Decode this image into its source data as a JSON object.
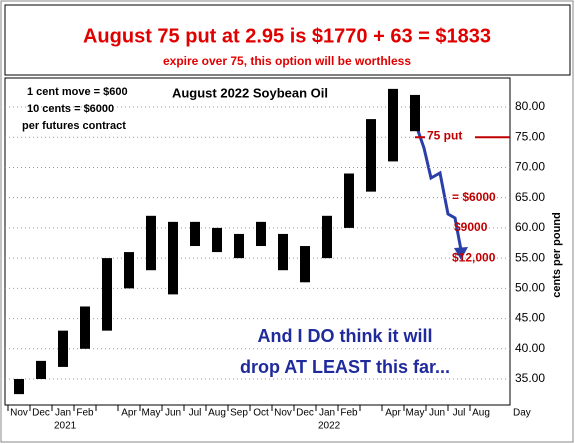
{
  "chart_data": {
    "type": "range",
    "title": "August 75 put at 2.95 is $1770 + 63 = $1833",
    "subtitle": "expire over 75, this option will be worthless",
    "chart_title": "August 2022 Soybean Oil",
    "notes": [
      "1 cent move = $600",
      "10 cents = $6000",
      "per futures contract"
    ],
    "callout": [
      "And I DO think it will",
      "drop AT LEAST this far..."
    ],
    "x_label": "Day",
    "y_label": "cents per pound",
    "categories": [
      "Nov",
      "Dec",
      "Jan",
      "Feb",
      null,
      "Apr",
      "May",
      "Jun",
      "Jul",
      "Aug",
      "Sep",
      "Oct",
      "Nov",
      "Dec",
      "Jan",
      "Feb",
      null,
      "Apr",
      "May",
      "Jun",
      "Jul",
      "Aug"
    ],
    "year_labels": [
      "2021",
      "2022"
    ],
    "series": [
      {
        "name": "high",
        "color": "#000000",
        "values": [
          35,
          38,
          43,
          47,
          55,
          56,
          62,
          61,
          61,
          60,
          59,
          61,
          59,
          57,
          62,
          69,
          78,
          83,
          82,
          null,
          null,
          null
        ]
      },
      {
        "name": "low",
        "color": "#000000",
        "values": [
          32.5,
          35,
          37,
          40,
          43,
          50,
          53,
          49,
          57,
          56,
          55,
          57,
          53,
          51,
          55,
          60,
          66,
          71,
          76,
          null,
          null,
          null
        ]
      }
    ],
    "strike": {
      "value": 75,
      "label": "75 put"
    },
    "levels": [
      {
        "value": 65,
        "label": "= $6000"
      },
      {
        "value": 60,
        "label": "$9000"
      },
      {
        "value": 55,
        "label": "$12,000"
      }
    ],
    "ylim": [
      30.7,
      84.8
    ],
    "yticks": [
      {
        "value": 35,
        "label": "35.00"
      },
      {
        "value": 40,
        "label": "40.00"
      },
      {
        "value": 45,
        "label": "45.00"
      },
      {
        "value": 50,
        "label": "50.00"
      },
      {
        "value": 55,
        "label": "55.00"
      },
      {
        "value": 60,
        "label": "60.00"
      },
      {
        "value": 65,
        "label": "65.00"
      },
      {
        "value": 70,
        "label": "70.00"
      },
      {
        "value": 75,
        "label": "75.00"
      },
      {
        "value": 80,
        "label": "80.00"
      }
    ],
    "grid": true
  }
}
